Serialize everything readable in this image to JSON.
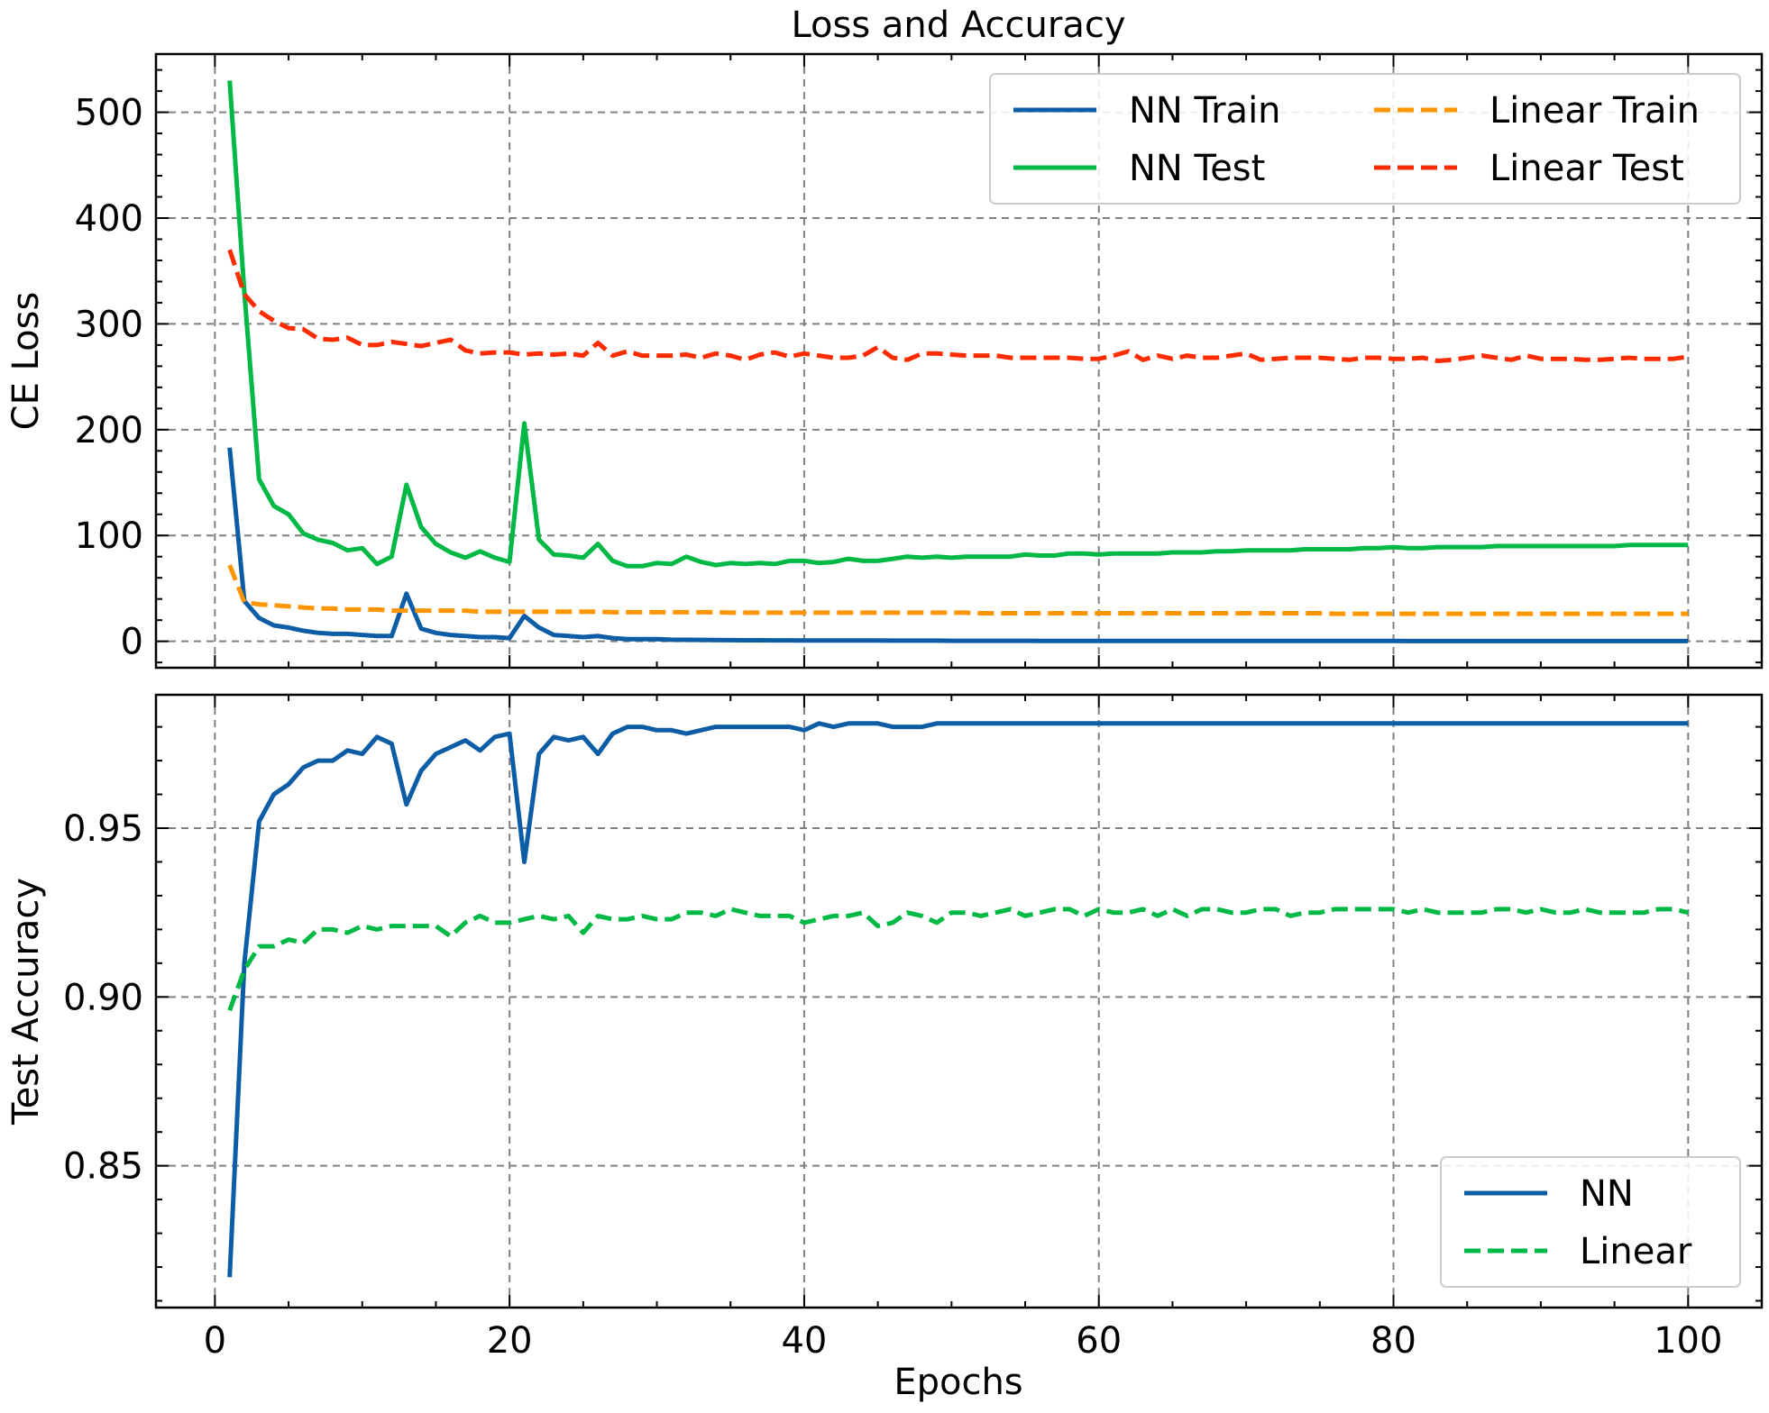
{
  "figure": {
    "title": "Loss and Accuracy",
    "xlabel": "Epochs"
  },
  "chart_data": [
    {
      "type": "line",
      "ylabel": "CE Loss",
      "xlim": [
        -4,
        105
      ],
      "ylim": [
        -25,
        555
      ],
      "xticks": [
        0,
        20,
        40,
        60,
        80,
        100
      ],
      "yticks": [
        0,
        100,
        200,
        300,
        400,
        500
      ],
      "ytick_labels": [
        "0",
        "100",
        "200",
        "300",
        "400",
        "500"
      ],
      "grid": true,
      "legend": {
        "placement": "top-right",
        "columns": 2
      },
      "series": [
        {
          "name": "NN Train",
          "color": "#0c5da5",
          "style": "solid",
          "x_start": 1,
          "x_step": 1,
          "values": [
            183,
            38,
            22,
            15,
            13,
            10,
            8,
            7,
            7,
            6,
            5,
            5,
            45,
            12,
            8,
            6,
            5,
            4,
            4,
            3,
            24,
            13,
            6,
            5,
            4,
            5,
            3,
            2,
            2,
            2,
            1.5,
            1.4,
            1.3,
            1.2,
            1.1,
            1,
            1,
            0.9,
            0.9,
            0.8,
            0.8,
            0.8,
            0.7,
            0.7,
            0.7,
            0.6,
            0.6,
            0.6,
            0.6,
            0.5,
            0.5,
            0.5,
            0.5,
            0.5,
            0.5,
            0.4,
            0.4,
            0.4,
            0.4,
            0.4,
            0.4,
            0.4,
            0.4,
            0.4,
            0.3,
            0.3,
            0.3,
            0.3,
            0.3,
            0.3,
            0.3,
            0.3,
            0.3,
            0.3,
            0.3,
            0.3,
            0.3,
            0.3,
            0.3,
            0.3,
            0.2,
            0.2,
            0.2,
            0.2,
            0.2,
            0.2,
            0.2,
            0.2,
            0.2,
            0.2,
            0.2,
            0.2,
            0.2,
            0.2,
            0.2,
            0.2,
            0.2,
            0.2,
            0.2,
            0.2
          ]
        },
        {
          "name": "NN Test",
          "color": "#00b945",
          "style": "solid",
          "x_start": 1,
          "x_step": 1,
          "values": [
            530,
            330,
            153,
            128,
            120,
            102,
            96,
            93,
            86,
            88,
            73,
            80,
            148,
            108,
            92,
            84,
            79,
            85,
            79,
            75,
            206,
            96,
            82,
            81,
            79,
            92,
            76,
            71,
            71,
            74,
            73,
            80,
            75,
            72,
            74,
            73,
            74,
            73,
            76,
            76,
            74,
            75,
            78,
            76,
            76,
            78,
            80,
            79,
            80,
            79,
            80,
            80,
            80,
            80,
            82,
            81,
            81,
            83,
            83,
            82,
            83,
            83,
            83,
            83,
            84,
            84,
            84,
            85,
            85,
            86,
            86,
            86,
            86,
            87,
            87,
            87,
            87,
            88,
            88,
            89,
            88,
            88,
            89,
            89,
            89,
            89,
            90,
            90,
            90,
            90,
            90,
            90,
            90,
            90,
            90,
            91,
            91,
            91,
            91,
            91
          ]
        },
        {
          "name": "Linear Train",
          "color": "#ff9500",
          "style": "dashed",
          "x_start": 1,
          "x_step": 1,
          "values": [
            72,
            37,
            35,
            34,
            33,
            32,
            31,
            31,
            30,
            30,
            30,
            29,
            29,
            29,
            29,
            29,
            29,
            28,
            28,
            28,
            28,
            28,
            28,
            28,
            28,
            28,
            27.5,
            27.5,
            27.5,
            27.5,
            27.5,
            27.5,
            27.5,
            27.5,
            27,
            27,
            27,
            27,
            27,
            27,
            27,
            27,
            27,
            27,
            27,
            27,
            27,
            27,
            27,
            27,
            27,
            26.5,
            26.5,
            26.5,
            26.5,
            26.5,
            26.5,
            26.5,
            26.5,
            26.5,
            26.5,
            26.5,
            26.5,
            26.5,
            26.5,
            26.5,
            26.5,
            26.5,
            26.5,
            26.5,
            26.5,
            26.5,
            26.5,
            26.5,
            26.5,
            26,
            26,
            26,
            26,
            26,
            26,
            26,
            26,
            26,
            26,
            26,
            26,
            26,
            26,
            26,
            26,
            26,
            26,
            26,
            26,
            26,
            26,
            26,
            26,
            26
          ]
        },
        {
          "name": "Linear Test",
          "color": "#ff2c00",
          "style": "dashed",
          "x_start": 1,
          "x_step": 1,
          "values": [
            370,
            328,
            312,
            303,
            296,
            295,
            286,
            285,
            287,
            280,
            280,
            283,
            281,
            279,
            282,
            285,
            275,
            272,
            273,
            273,
            271,
            272,
            271,
            272,
            270,
            282,
            270,
            274,
            270,
            270,
            270,
            271,
            268,
            272,
            270,
            266,
            271,
            273,
            269,
            272,
            270,
            268,
            268,
            270,
            278,
            268,
            266,
            272,
            272,
            271,
            270,
            270,
            270,
            268,
            268,
            268,
            268,
            268,
            267,
            267,
            270,
            274,
            266,
            270,
            267,
            270,
            268,
            268,
            270,
            272,
            266,
            267,
            268,
            268,
            268,
            267,
            266,
            268,
            268,
            267,
            267,
            268,
            265,
            266,
            268,
            270,
            268,
            266,
            270,
            267,
            267,
            267,
            266,
            266,
            267,
            268,
            267,
            267,
            267,
            269
          ]
        }
      ]
    },
    {
      "type": "line",
      "ylabel": "Test Accuracy",
      "xlim": [
        -4,
        105
      ],
      "ylim": [
        0.808,
        0.9895
      ],
      "xticks": [
        0,
        20,
        40,
        60,
        80,
        100
      ],
      "xtick_labels": [
        "0",
        "20",
        "40",
        "60",
        "80",
        "100"
      ],
      "yticks": [
        0.85,
        0.9,
        0.95
      ],
      "ytick_labels": [
        "0.85",
        "0.90",
        "0.95"
      ],
      "grid": true,
      "legend": {
        "placement": "bottom-right",
        "columns": 1
      },
      "series": [
        {
          "name": "NN",
          "color": "#0c5da5",
          "style": "solid",
          "x_start": 1,
          "x_step": 1,
          "values": [
            0.817,
            0.91,
            0.952,
            0.96,
            0.963,
            0.968,
            0.97,
            0.97,
            0.973,
            0.972,
            0.977,
            0.975,
            0.957,
            0.967,
            0.972,
            0.974,
            0.976,
            0.973,
            0.977,
            0.978,
            0.94,
            0.972,
            0.977,
            0.976,
            0.977,
            0.972,
            0.978,
            0.98,
            0.98,
            0.979,
            0.979,
            0.978,
            0.979,
            0.98,
            0.98,
            0.98,
            0.98,
            0.98,
            0.98,
            0.979,
            0.981,
            0.98,
            0.981,
            0.981,
            0.981,
            0.98,
            0.98,
            0.98,
            0.981,
            0.981,
            0.981,
            0.981,
            0.981,
            0.981,
            0.981,
            0.981,
            0.981,
            0.981,
            0.981,
            0.981,
            0.981,
            0.981,
            0.981,
            0.981,
            0.981,
            0.981,
            0.981,
            0.981,
            0.981,
            0.981,
            0.981,
            0.981,
            0.981,
            0.981,
            0.981,
            0.981,
            0.981,
            0.981,
            0.981,
            0.981,
            0.981,
            0.981,
            0.981,
            0.981,
            0.981,
            0.981,
            0.981,
            0.981,
            0.981,
            0.981,
            0.981,
            0.981,
            0.981,
            0.981,
            0.981,
            0.981,
            0.981,
            0.981,
            0.981,
            0.981
          ]
        },
        {
          "name": "Linear",
          "color": "#00b945",
          "style": "dashed",
          "x_start": 1,
          "x_step": 1,
          "values": [
            0.896,
            0.908,
            0.915,
            0.915,
            0.917,
            0.916,
            0.92,
            0.92,
            0.919,
            0.921,
            0.92,
            0.921,
            0.921,
            0.921,
            0.921,
            0.918,
            0.922,
            0.924,
            0.922,
            0.922,
            0.923,
            0.924,
            0.923,
            0.924,
            0.919,
            0.924,
            0.923,
            0.923,
            0.924,
            0.923,
            0.923,
            0.925,
            0.925,
            0.924,
            0.926,
            0.925,
            0.924,
            0.924,
            0.924,
            0.922,
            0.923,
            0.924,
            0.924,
            0.925,
            0.921,
            0.922,
            0.925,
            0.924,
            0.922,
            0.925,
            0.925,
            0.924,
            0.925,
            0.926,
            0.924,
            0.925,
            0.926,
            0.926,
            0.924,
            0.926,
            0.925,
            0.925,
            0.926,
            0.924,
            0.926,
            0.924,
            0.926,
            0.926,
            0.925,
            0.925,
            0.926,
            0.926,
            0.924,
            0.925,
            0.925,
            0.926,
            0.926,
            0.926,
            0.926,
            0.926,
            0.925,
            0.926,
            0.925,
            0.925,
            0.925,
            0.925,
            0.926,
            0.926,
            0.925,
            0.926,
            0.925,
            0.925,
            0.926,
            0.925,
            0.925,
            0.925,
            0.925,
            0.926,
            0.926,
            0.925
          ]
        }
      ]
    }
  ]
}
